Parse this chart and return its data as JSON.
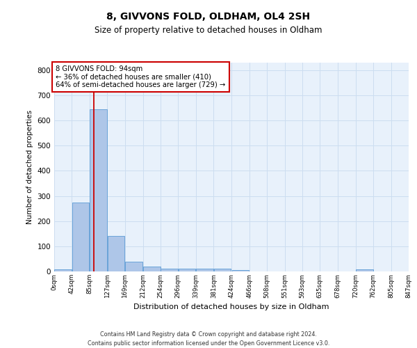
{
  "title": "8, GIVVONS FOLD, OLDHAM, OL4 2SH",
  "subtitle": "Size of property relative to detached houses in Oldham",
  "xlabel": "Distribution of detached houses by size in Oldham",
  "ylabel": "Number of detached properties",
  "footer_line1": "Contains HM Land Registry data © Crown copyright and database right 2024.",
  "footer_line2": "Contains public sector information licensed under the Open Government Licence v3.0.",
  "bin_edges": [
    0,
    42,
    85,
    127,
    169,
    212,
    254,
    296,
    339,
    381,
    424,
    466,
    508,
    551,
    593,
    635,
    678,
    720,
    762,
    805,
    847
  ],
  "bin_labels": [
    "0sqm",
    "42sqm",
    "85sqm",
    "127sqm",
    "169sqm",
    "212sqm",
    "254sqm",
    "296sqm",
    "339sqm",
    "381sqm",
    "424sqm",
    "466sqm",
    "508sqm",
    "551sqm",
    "593sqm",
    "635sqm",
    "678sqm",
    "720sqm",
    "762sqm",
    "805sqm",
    "847sqm"
  ],
  "bar_heights": [
    8,
    275,
    645,
    140,
    38,
    20,
    12,
    10,
    10,
    10,
    5,
    0,
    0,
    0,
    0,
    0,
    0,
    8,
    0,
    0
  ],
  "bar_color": "#aec6e8",
  "bar_edge_color": "#5b9bd5",
  "grid_color": "#ccddf0",
  "background_color": "#e8f1fb",
  "property_size": 94,
  "red_line_color": "#cc0000",
  "annotation_text_line1": "8 GIVVONS FOLD: 94sqm",
  "annotation_text_line2": "← 36% of detached houses are smaller (410)",
  "annotation_text_line3": "64% of semi-detached houses are larger (729) →",
  "annotation_box_color": "#cc0000",
  "ylim": [
    0,
    830
  ],
  "yticks": [
    0,
    100,
    200,
    300,
    400,
    500,
    600,
    700,
    800
  ]
}
